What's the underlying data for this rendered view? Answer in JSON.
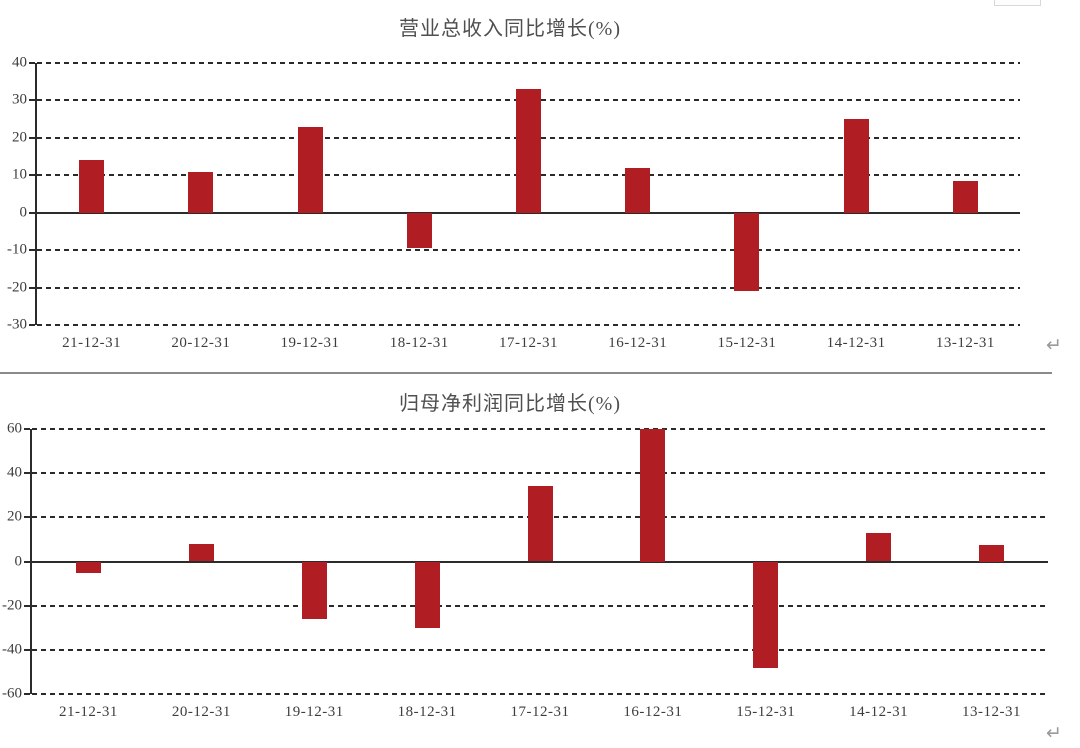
{
  "page": {
    "background": "#ffffff"
  },
  "decorations": {
    "return_mark_glyph": "↵",
    "divider_color": "#8a8a8a",
    "corner_box_border": "#d8d8d8"
  },
  "colors": {
    "bar": "#B01E23",
    "gridline": "#2a2a2a",
    "axis": "#2b2b2b",
    "label_text": "#3d3d3d",
    "title_text": "#4f4f4f"
  },
  "chart_data": [
    {
      "type": "bar",
      "title": "营业总收入同比增长(%)",
      "categories": [
        "21-12-31",
        "20-12-31",
        "19-12-31",
        "18-12-31",
        "17-12-31",
        "16-12-31",
        "15-12-31",
        "14-12-31",
        "13-12-31"
      ],
      "values": [
        14,
        11,
        23,
        -9.5,
        33,
        12,
        -21,
        25,
        8.5
      ],
      "ylim": [
        -30,
        40
      ],
      "yticks": [
        40,
        30,
        20,
        10,
        0,
        -10,
        -20,
        -30
      ],
      "xlabel": "",
      "ylabel": "",
      "grid": "horizontal-dashed",
      "legend_position": "none",
      "bar_color": "#B01E23"
    },
    {
      "type": "bar",
      "title": "归母净利润同比增长(%)",
      "categories": [
        "21-12-31",
        "20-12-31",
        "19-12-31",
        "18-12-31",
        "17-12-31",
        "16-12-31",
        "15-12-31",
        "14-12-31",
        "13-12-31"
      ],
      "values": [
        -5,
        8,
        -26,
        -30,
        34,
        60,
        -48,
        13,
        7.5
      ],
      "ylim": [
        -60,
        60
      ],
      "yticks": [
        60,
        40,
        20,
        0,
        -20,
        -40,
        -60
      ],
      "xlabel": "",
      "ylabel": "",
      "grid": "horizontal-dashed",
      "legend_position": "none",
      "bar_color": "#B01E23"
    }
  ]
}
